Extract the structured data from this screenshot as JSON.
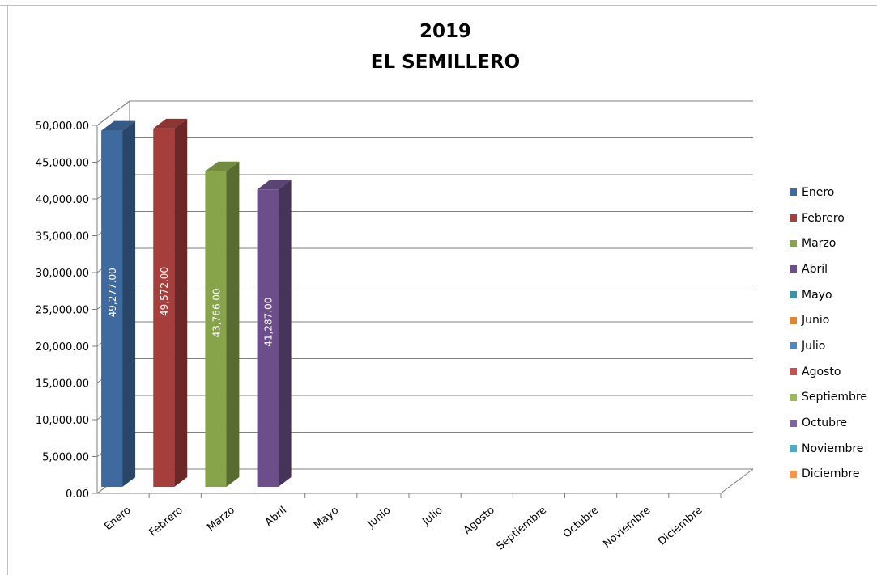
{
  "chart_data": {
    "type": "bar",
    "title": "2019",
    "subtitle": "EL SEMILLERO",
    "categories": [
      "Enero",
      "Febrero",
      "Marzo",
      "Abril",
      "Mayo",
      "Junio",
      "Julio",
      "Agosto",
      "Septiembre",
      "Octubre",
      "Noviembre",
      "Diciembre"
    ],
    "values": [
      49277,
      49572,
      43766,
      41287,
      null,
      null,
      null,
      null,
      null,
      null,
      null,
      null
    ],
    "data_labels": [
      "49,277.00",
      "49,572.00",
      "43,766.00",
      "41,287.00",
      "",
      "",
      "",
      "",
      "",
      "",
      "",
      ""
    ],
    "y_ticks": [
      "0.00",
      "5,000.00",
      "10,000.00",
      "15,000.00",
      "20,000.00",
      "25,000.00",
      "30,000.00",
      "35,000.00",
      "40,000.00",
      "45,000.00",
      "50,000.00"
    ],
    "ylim": [
      0,
      50000
    ],
    "grid": true,
    "legend_position": "right",
    "legend": [
      "Enero",
      "Febrero",
      "Marzo",
      "Abril",
      "Mayo",
      "Junio",
      "Julio",
      "Agosto",
      "Septiembre",
      "Octubre",
      "Noviembre",
      "Diciembre"
    ],
    "colors": {
      "Enero": "#3f6aa0",
      "Febrero": "#a63e3c",
      "Marzo": "#87a44a",
      "Abril": "#6c4f8a",
      "Mayo": "#3c93a9",
      "Junio": "#e2832e",
      "Julio": "#4f86c6",
      "Agosto": "#c9504d",
      "Septiembre": "#9bbb59",
      "Octubre": "#8064a2",
      "Noviembre": "#4bacc6",
      "Diciembre": "#f79646"
    }
  }
}
